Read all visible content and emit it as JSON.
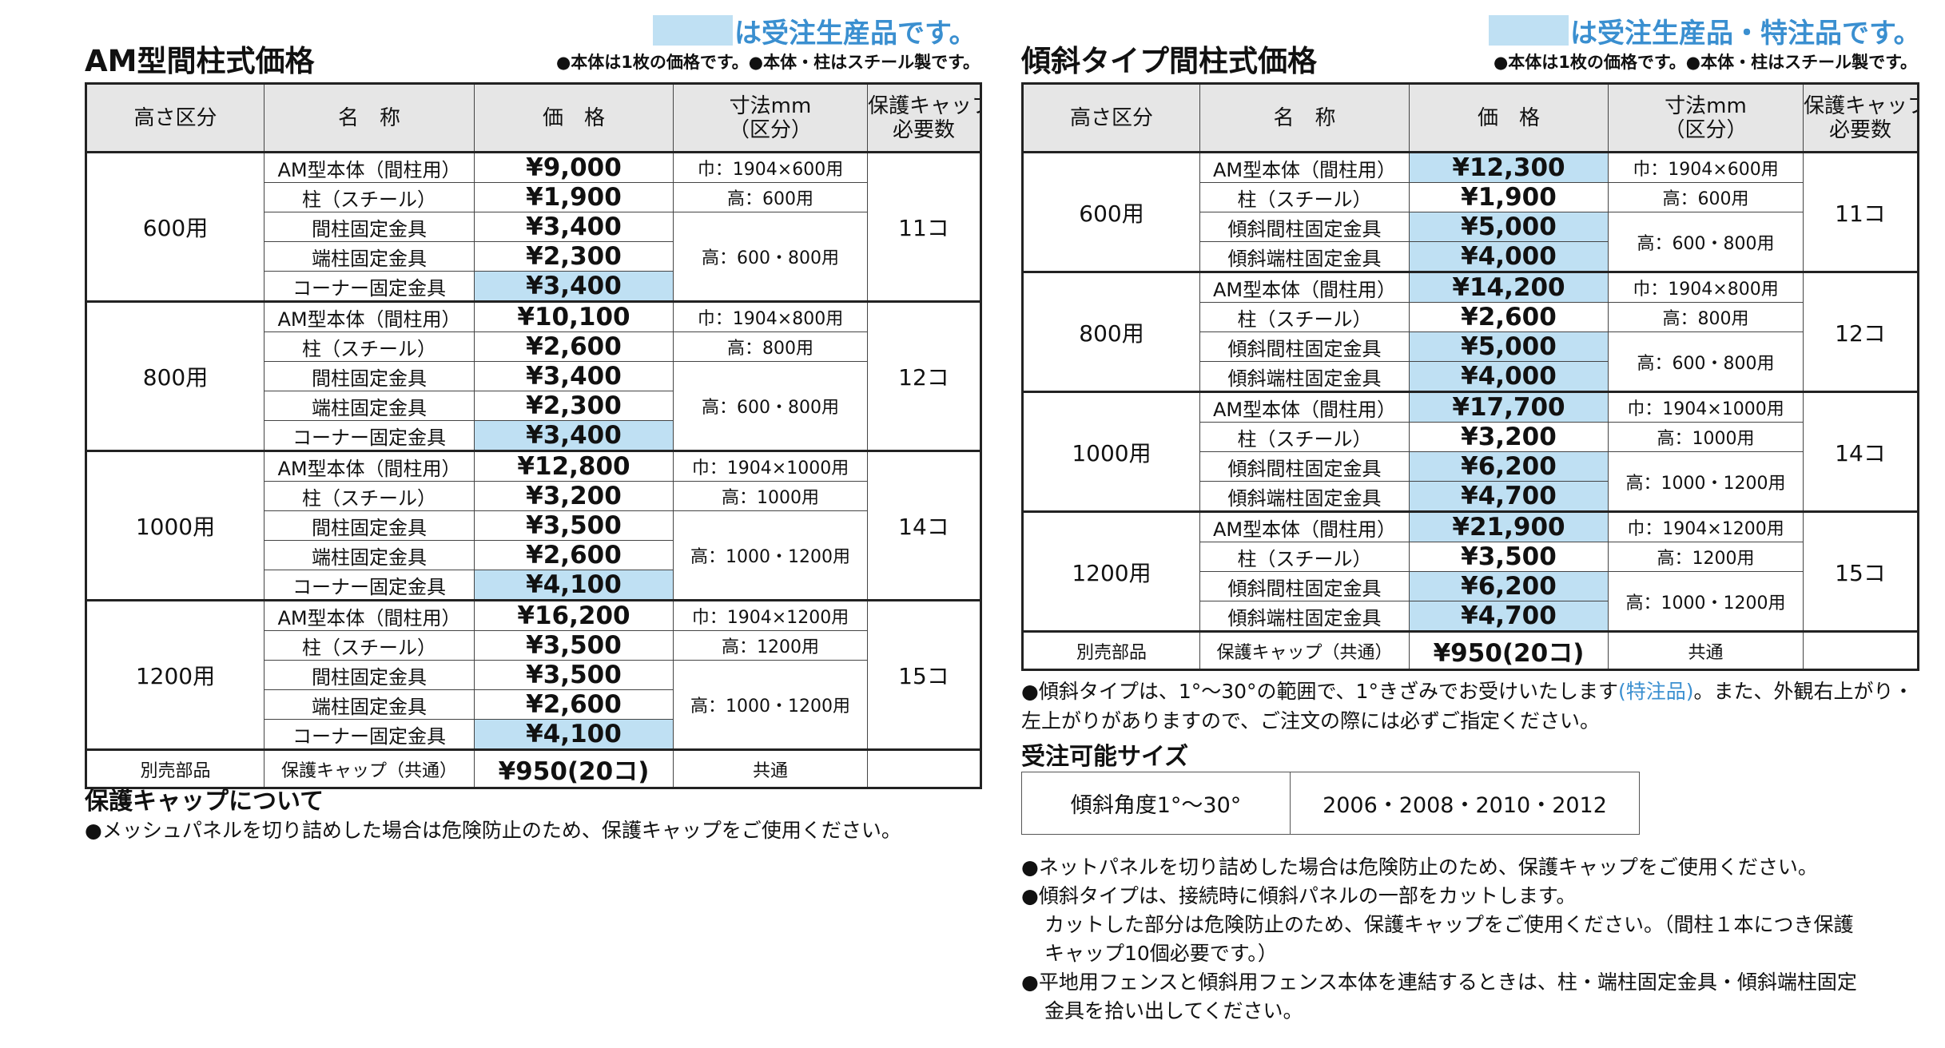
{
  "left": {
    "title": "AM型間柱式価格",
    "legend_note": "は受注生産品です。",
    "sub_note": "●本体は1枚の価格です。●本体・柱はスチール製です。",
    "headers": [
      [
        "高さ区分"
      ],
      [
        "名　称"
      ],
      [
        "価　格"
      ],
      [
        "寸法mm",
        "（区分）"
      ],
      [
        "保護キャップ",
        "必要数"
      ]
    ],
    "groups": [
      {
        "height": "600用",
        "caps": "11コ",
        "rows": [
          {
            "name": "AM型本体（間柱用）",
            "price": "¥9,000",
            "made_to_order": false
          },
          {
            "name": "柱（スチール）",
            "price": "¥1,900",
            "made_to_order": false
          },
          {
            "name": "間柱固定金具",
            "price": "¥3,400",
            "made_to_order": false
          },
          {
            "name": "端柱固定金具",
            "price": "¥2,300",
            "made_to_order": false
          },
          {
            "name": "コーナー固定金具",
            "price": "¥3,400",
            "made_to_order": true
          }
        ],
        "dims": [
          "巾：1904×600用",
          "高：600用",
          "高：600・800用"
        ]
      },
      {
        "height": "800用",
        "caps": "12コ",
        "rows": [
          {
            "name": "AM型本体（間柱用）",
            "price": "¥10,100",
            "made_to_order": false
          },
          {
            "name": "柱（スチール）",
            "price": "¥2,600",
            "made_to_order": false
          },
          {
            "name": "間柱固定金具",
            "price": "¥3,400",
            "made_to_order": false
          },
          {
            "name": "端柱固定金具",
            "price": "¥2,300",
            "made_to_order": false
          },
          {
            "name": "コーナー固定金具",
            "price": "¥3,400",
            "made_to_order": true
          }
        ],
        "dims": [
          "巾：1904×800用",
          "高：800用",
          "高：600・800用"
        ]
      },
      {
        "height": "1000用",
        "caps": "14コ",
        "rows": [
          {
            "name": "AM型本体（間柱用）",
            "price": "¥12,800",
            "made_to_order": false
          },
          {
            "name": "柱（スチール）",
            "price": "¥3,200",
            "made_to_order": false
          },
          {
            "name": "間柱固定金具",
            "price": "¥3,500",
            "made_to_order": false
          },
          {
            "name": "端柱固定金具",
            "price": "¥2,600",
            "made_to_order": false
          },
          {
            "name": "コーナー固定金具",
            "price": "¥4,100",
            "made_to_order": true
          }
        ],
        "dims": [
          "巾：1904×1000用",
          "高：1000用",
          "高：1000・1200用"
        ]
      },
      {
        "height": "1200用",
        "caps": "15コ",
        "rows": [
          {
            "name": "AM型本体（間柱用）",
            "price": "¥16,200",
            "made_to_order": false
          },
          {
            "name": "柱（スチール）",
            "price": "¥3,500",
            "made_to_order": false
          },
          {
            "name": "間柱固定金具",
            "price": "¥3,500",
            "made_to_order": false
          },
          {
            "name": "端柱固定金具",
            "price": "¥2,600",
            "made_to_order": false
          },
          {
            "name": "コーナー固定金具",
            "price": "¥4,100",
            "made_to_order": true
          }
        ],
        "dims": [
          "巾：1904×1200用",
          "高：1200用",
          "高：1000・1200用"
        ]
      }
    ],
    "extra": {
      "label": "別売部品",
      "name": "保護キャップ（共通）",
      "price": "¥950(20コ)",
      "dims": "共通"
    },
    "footer": {
      "title": "保護キャップについて",
      "text": "●メッシュパネルを切り詰めした場合は危険防止のため、保護キャップをご使用ください。"
    }
  },
  "right": {
    "title": "傾斜タイプ間柱式価格",
    "legend_note": "は受注生産品・特注品です。",
    "sub_note": "●本体は1枚の価格です。●本体・柱はスチール製です。",
    "headers": [
      [
        "高さ区分"
      ],
      [
        "名　称"
      ],
      [
        "価　格"
      ],
      [
        "寸法mm",
        "（区分）"
      ],
      [
        "保護キャップ",
        "必要数"
      ]
    ],
    "groups": [
      {
        "height": "600用",
        "caps": "11コ",
        "rows": [
          {
            "name": "AM型本体（間柱用）",
            "price": "¥12,300",
            "made_to_order": true
          },
          {
            "name": "柱（スチール）",
            "price": "¥1,900",
            "made_to_order": false
          },
          {
            "name": "傾斜間柱固定金具",
            "price": "¥5,000",
            "made_to_order": true
          },
          {
            "name": "傾斜端柱固定金具",
            "price": "¥4,000",
            "made_to_order": true
          }
        ],
        "dims": [
          "巾：1904×600用",
          "高：600用",
          "高：600・800用"
        ]
      },
      {
        "height": "800用",
        "caps": "12コ",
        "rows": [
          {
            "name": "AM型本体（間柱用）",
            "price": "¥14,200",
            "made_to_order": true
          },
          {
            "name": "柱（スチール）",
            "price": "¥2,600",
            "made_to_order": false
          },
          {
            "name": "傾斜間柱固定金具",
            "price": "¥5,000",
            "made_to_order": true
          },
          {
            "name": "傾斜端柱固定金具",
            "price": "¥4,000",
            "made_to_order": true
          }
        ],
        "dims": [
          "巾：1904×800用",
          "高：800用",
          "高：600・800用"
        ]
      },
      {
        "height": "1000用",
        "caps": "14コ",
        "rows": [
          {
            "name": "AM型本体（間柱用）",
            "price": "¥17,700",
            "made_to_order": true
          },
          {
            "name": "柱（スチール）",
            "price": "¥3,200",
            "made_to_order": false
          },
          {
            "name": "傾斜間柱固定金具",
            "price": "¥6,200",
            "made_to_order": true
          },
          {
            "name": "傾斜端柱固定金具",
            "price": "¥4,700",
            "made_to_order": true
          }
        ],
        "dims": [
          "巾：1904×1000用",
          "高：1000用",
          "高：1000・1200用"
        ]
      },
      {
        "height": "1200用",
        "caps": "15コ",
        "rows": [
          {
            "name": "AM型本体（間柱用）",
            "price": "¥21,900",
            "made_to_order": true
          },
          {
            "name": "柱（スチール）",
            "price": "¥3,500",
            "made_to_order": false
          },
          {
            "name": "傾斜間柱固定金具",
            "price": "¥6,200",
            "made_to_order": true
          },
          {
            "name": "傾斜端柱固定金具",
            "price": "¥4,700",
            "made_to_order": true
          }
        ],
        "dims": [
          "巾：1904×1200用",
          "高：1200用",
          "高：1000・1200用"
        ]
      }
    ],
    "extra": {
      "label": "別売部品",
      "name": "保護キャップ（共通）",
      "price": "¥950(20コ)",
      "dims": "共通"
    },
    "notes1": [
      [
        {
          "text": "●傾斜タイプは、1°～30°の範囲で、1°きざみでお受けいたします"
        },
        {
          "text": "(特注品)",
          "color": "#3a8fd0"
        },
        {
          "text": "。また、外観右上がり・"
        }
      ],
      [
        {
          "text": "左上がりがありますので、ご注文の際には必ずご指定ください。"
        }
      ]
    ],
    "sizes": {
      "title": "受注可能サイズ",
      "cells": [
        "傾斜角度1°～30°",
        "2006・2008・2010・2012"
      ]
    },
    "notes2": [
      "●ネットパネルを切り詰めした場合は危険防止のため、保護キャップをご使用ください。",
      "●傾斜タイプは、接続時に傾斜パネルの一部をカットします。",
      "カットした部分は危険防止のため、保護キャップをご使用ください。（間柱１本につき保護",
      "キャップ10個必要です。）",
      "●平地用フェンスと傾斜用フェンス本体を連結するときは、柱・端柱固定金具・傾斜端柱固定",
      "金具を拾い出してください。"
    ]
  }
}
